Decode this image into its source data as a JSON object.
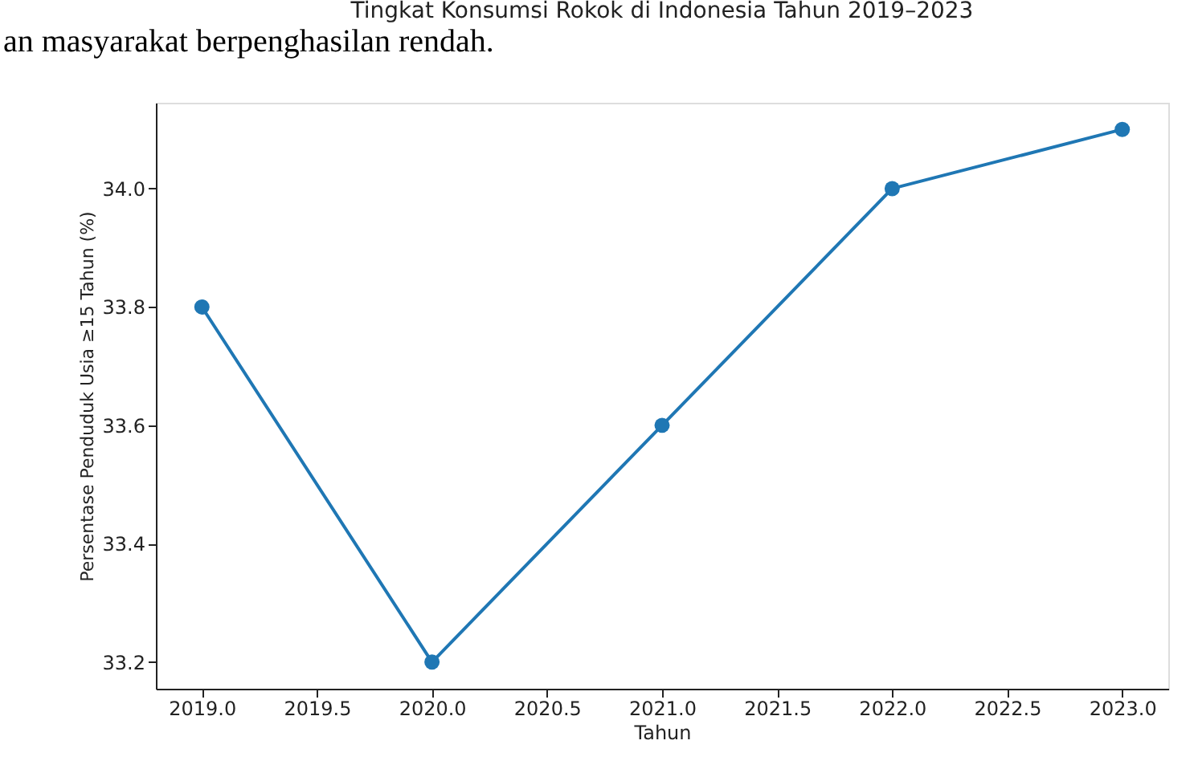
{
  "chart_data": {
    "type": "line",
    "title": "Tingkat Konsumsi Rokok di Indonesia Tahun 2019–2023",
    "xlabel": "Tahun",
    "ylabel": "Persentase Penduduk Usia ≥15 Tahun (%)",
    "annotations": [
      "an masyarakat berpenghasilan rendah."
    ],
    "x": [
      2019,
      2020,
      2021,
      2022,
      2023
    ],
    "series": [
      {
        "color": "#1f77b4",
        "values": [
          33.8,
          33.2,
          33.6,
          34.0,
          34.1
        ]
      }
    ],
    "xlim": [
      2018.8,
      2023.2
    ],
    "xticks": [
      {
        "value": 2019,
        "label": "2019.0"
      },
      {
        "value": 2019.5,
        "label": "2019.5"
      },
      {
        "value": 2020,
        "label": "2020.0"
      },
      {
        "value": 2020.5,
        "label": "2020.5"
      },
      {
        "value": 2021,
        "label": "2021.0"
      },
      {
        "value": 2021.5,
        "label": "2021.5"
      },
      {
        "value": 2022,
        "label": "2022.0"
      },
      {
        "value": 2022.5,
        "label": "2022.5"
      },
      {
        "value": 2023,
        "label": "2023.0"
      }
    ],
    "ylim": [
      33.155,
      34.145
    ],
    "yticks": [
      {
        "value": 33.2,
        "label": "33.2"
      },
      {
        "value": 33.4,
        "label": "33.4"
      },
      {
        "value": 33.6,
        "label": "33.6"
      },
      {
        "value": 33.8,
        "label": "33.8"
      },
      {
        "value": 34.0,
        "label": "34.0"
      }
    ],
    "grid": false,
    "legend": false,
    "marker": "circle",
    "line_style": "solid"
  }
}
